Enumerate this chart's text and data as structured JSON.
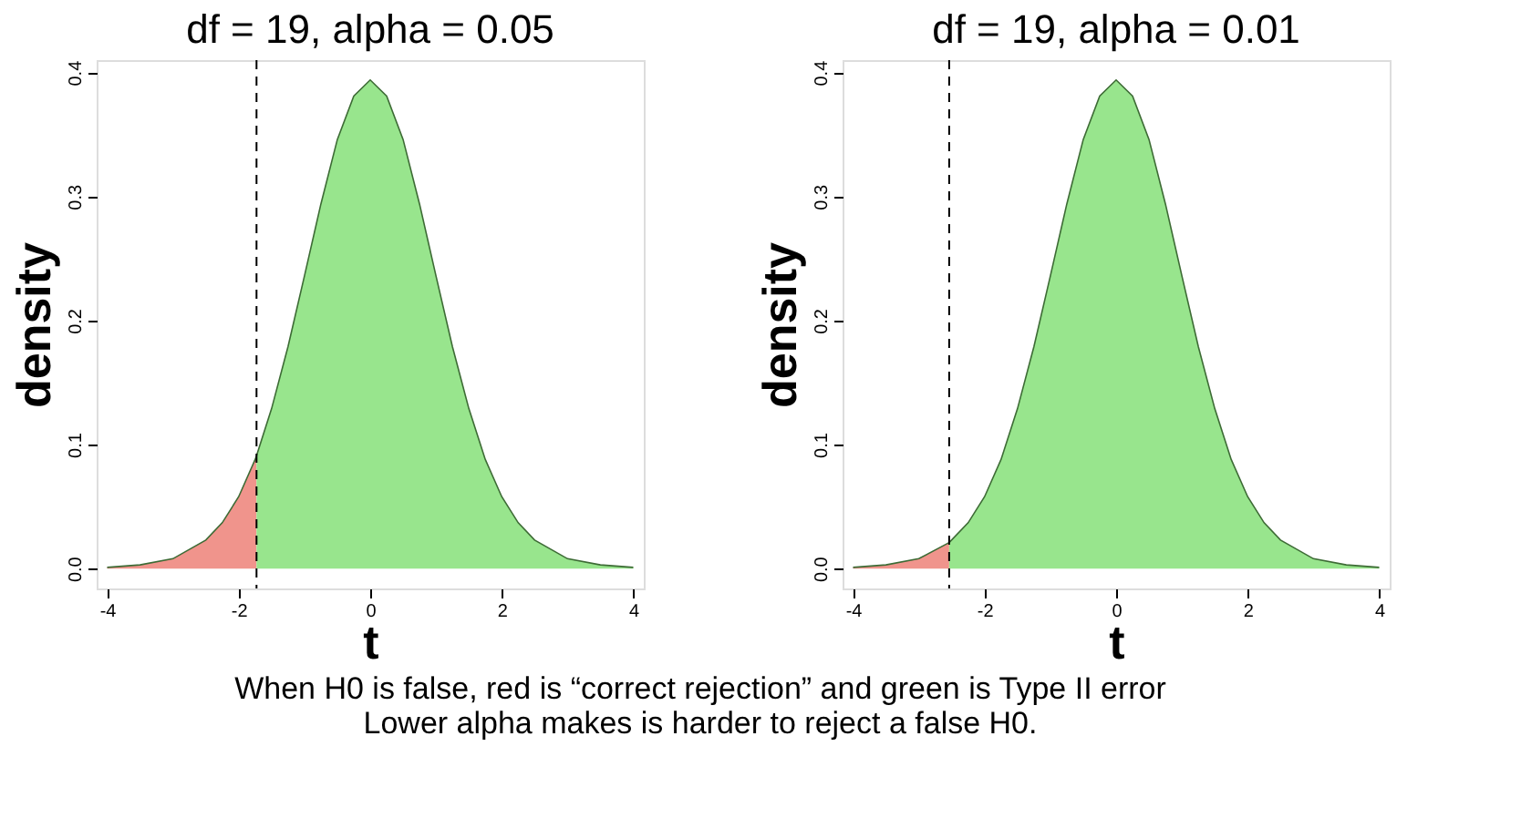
{
  "chart_data": [
    {
      "type": "area",
      "title": "df = 19, alpha = 0.05",
      "xlabel": "t",
      "ylabel": "density",
      "xlim": [
        -4.16,
        4.16
      ],
      "ylim": [
        -0.016,
        0.41
      ],
      "xticks": [
        -4,
        -2,
        0,
        2,
        4
      ],
      "yticks": [
        {
          "value": 0,
          "label": "0.0"
        },
        0.1,
        0.2,
        0.3,
        0.4
      ],
      "grid": false,
      "series": [
        {
          "color": "#f0948c",
          "x": [
            -4,
            -3.5,
            -3,
            -2.5,
            -2.25,
            -2,
            -1.75,
            -1.729
          ],
          "values": [
            0.001,
            0.003,
            0.008,
            0.023,
            0.037,
            0.058,
            0.088,
            0.091
          ]
        },
        {
          "color": "#98e58d",
          "x": [
            -1.729,
            -1.5,
            -1.25,
            -1,
            -0.75,
            -0.5,
            -0.25,
            0,
            0.25,
            0.5,
            0.75,
            1,
            1.25,
            1.5,
            1.75,
            2,
            2.25,
            2.5,
            3,
            3.5,
            4
          ],
          "values": [
            0.091,
            0.129,
            0.179,
            0.236,
            0.294,
            0.346,
            0.381,
            0.394,
            0.381,
            0.346,
            0.294,
            0.236,
            0.179,
            0.129,
            0.088,
            0.058,
            0.037,
            0.023,
            0.008,
            0.003,
            0.001
          ]
        }
      ],
      "ref_lines": [
        {
          "axis": "x",
          "value": -1.729,
          "line_style": "dashed",
          "color": "#000000"
        }
      ]
    },
    {
      "type": "area",
      "title": "df = 19, alpha = 0.01",
      "xlabel": "t",
      "ylabel": "density",
      "xlim": [
        -4.16,
        4.16
      ],
      "ylim": [
        -0.016,
        0.41
      ],
      "xticks": [
        -4,
        -2,
        0,
        2,
        4
      ],
      "yticks": [
        {
          "value": 0,
          "label": "0.0"
        },
        0.1,
        0.2,
        0.3,
        0.4
      ],
      "grid": false,
      "series": [
        {
          "color": "#f0948c",
          "x": [
            -4,
            -3.5,
            -3,
            -2.539
          ],
          "values": [
            0.001,
            0.003,
            0.008,
            0.021
          ]
        },
        {
          "color": "#98e58d",
          "x": [
            -2.539,
            -2.25,
            -2,
            -1.75,
            -1.5,
            -1.25,
            -1,
            -0.75,
            -0.5,
            -0.25,
            0,
            0.25,
            0.5,
            0.75,
            1,
            1.25,
            1.5,
            1.75,
            2,
            2.25,
            2.5,
            3,
            3.5,
            4
          ],
          "values": [
            0.021,
            0.037,
            0.058,
            0.088,
            0.129,
            0.179,
            0.236,
            0.294,
            0.346,
            0.381,
            0.394,
            0.381,
            0.346,
            0.294,
            0.236,
            0.179,
            0.129,
            0.088,
            0.058,
            0.037,
            0.023,
            0.008,
            0.003,
            0.001
          ]
        }
      ],
      "ref_lines": [
        {
          "axis": "x",
          "value": -2.539,
          "line_style": "dashed",
          "color": "#000000"
        }
      ],
      "annotations": [
        "When H0 is false, red is “correct rejection” and green is Type II error",
        "Lower alpha makes is harder to reject a false H0."
      ]
    }
  ]
}
